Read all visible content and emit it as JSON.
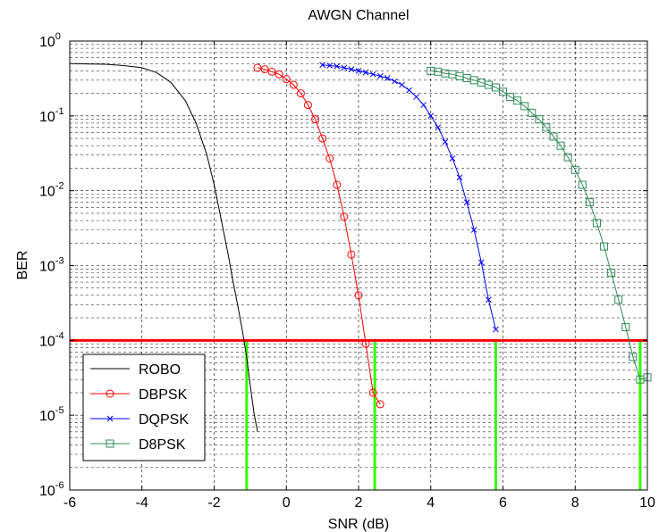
{
  "chart_data": {
    "type": "line",
    "title": "AWGN Channel",
    "xlabel": "SNR (dB)",
    "ylabel": "BER",
    "xlim": [
      -6,
      10
    ],
    "ylim": [
      1e-06,
      1
    ],
    "yscale": "log",
    "grid": "on (major and minor)",
    "legend_position": "bottom-left",
    "x_ticks": [
      "-6",
      "-4",
      "-2",
      "0",
      "2",
      "4",
      "6",
      "8",
      "10"
    ],
    "y_ticks": [
      {
        "base": "10",
        "exp": "-6"
      },
      {
        "base": "10",
        "exp": "-5"
      },
      {
        "base": "10",
        "exp": "-4"
      },
      {
        "base": "10",
        "exp": "-3"
      },
      {
        "base": "10",
        "exp": "-2"
      },
      {
        "base": "10",
        "exp": "-1"
      },
      {
        "base": "10",
        "exp": "0"
      }
    ],
    "series": [
      {
        "name": "ROBO",
        "color": "#000000",
        "marker": "none",
        "x": [
          -6,
          -5,
          -4.5,
          -4,
          -3.6,
          -3.2,
          -2.8,
          -2.5,
          -2.2,
          -2.0,
          -1.8,
          -1.6,
          -1.5,
          -1.4,
          -1.3,
          -1.2,
          -1.1,
          -1.0,
          -0.9,
          -0.8
        ],
        "y": [
          0.5,
          0.49,
          0.47,
          0.44,
          0.38,
          0.28,
          0.16,
          0.08,
          0.03,
          0.012,
          0.004,
          0.0013,
          0.0007,
          0.0004,
          0.00022,
          0.00012,
          6e-05,
          2.5e-05,
          1.1e-05,
          6e-06
        ]
      },
      {
        "name": "DBPSK",
        "color": "#ff0000",
        "marker": "circle",
        "x": [
          -0.8,
          -0.6,
          -0.4,
          -0.2,
          0,
          0.2,
          0.4,
          0.6,
          0.8,
          1.0,
          1.2,
          1.4,
          1.6,
          1.8,
          2.0,
          2.2,
          2.4,
          2.6
        ],
        "y": [
          0.44,
          0.42,
          0.39,
          0.36,
          0.31,
          0.26,
          0.2,
          0.14,
          0.09,
          0.05,
          0.027,
          0.012,
          0.0045,
          0.0014,
          0.0004,
          9e-05,
          2e-05,
          1.4e-05
        ]
      },
      {
        "name": "DQPSK",
        "color": "#0000ff",
        "marker": "x",
        "x": [
          1.0,
          1.2,
          1.4,
          1.6,
          1.8,
          2.0,
          2.2,
          2.4,
          2.6,
          2.8,
          3.0,
          3.2,
          3.4,
          3.6,
          3.8,
          4.0,
          4.2,
          4.4,
          4.6,
          4.8,
          5.0,
          5.2,
          5.4,
          5.6,
          5.8
        ],
        "y": [
          0.48,
          0.47,
          0.46,
          0.44,
          0.42,
          0.4,
          0.38,
          0.36,
          0.34,
          0.32,
          0.29,
          0.26,
          0.22,
          0.18,
          0.14,
          0.1,
          0.07,
          0.045,
          0.027,
          0.015,
          0.007,
          0.003,
          0.0011,
          0.00035,
          0.00014
        ]
      },
      {
        "name": "D8PSK",
        "color": "#2e8b57",
        "marker": "square",
        "x": [
          4.0,
          4.2,
          4.4,
          4.6,
          4.8,
          5.0,
          5.2,
          5.4,
          5.6,
          5.8,
          6.0,
          6.2,
          6.4,
          6.6,
          6.8,
          7.0,
          7.2,
          7.4,
          7.6,
          7.8,
          8.0,
          8.2,
          8.4,
          8.6,
          8.8,
          9.0,
          9.2,
          9.4,
          9.6,
          9.8,
          10.0
        ],
        "y": [
          0.4,
          0.39,
          0.37,
          0.36,
          0.34,
          0.32,
          0.3,
          0.28,
          0.26,
          0.24,
          0.21,
          0.18,
          0.16,
          0.135,
          0.11,
          0.09,
          0.07,
          0.053,
          0.04,
          0.028,
          0.019,
          0.012,
          0.007,
          0.0037,
          0.0018,
          0.0008,
          0.00035,
          0.00015,
          6e-05,
          3e-05,
          3.2e-05
        ]
      }
    ],
    "reference_line": {
      "y": 0.0001,
      "color": "#ff0000"
    },
    "marker_lines": {
      "x": [
        -1.1,
        2.45,
        5.8,
        9.8
      ],
      "color": "#33ff00"
    }
  }
}
